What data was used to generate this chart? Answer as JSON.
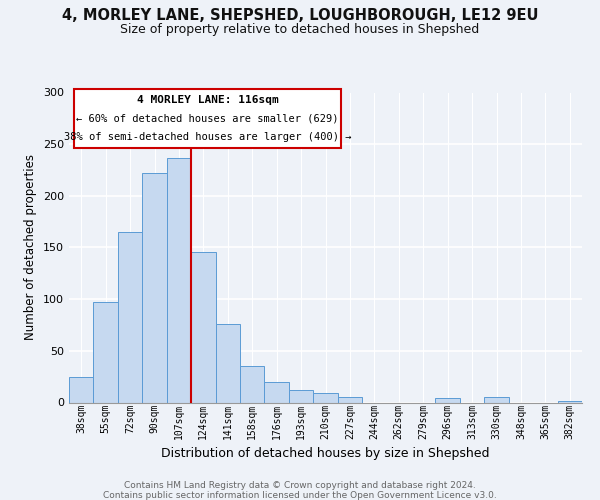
{
  "title_line1": "4, MORLEY LANE, SHEPSHED, LOUGHBOROUGH, LE12 9EU",
  "title_line2": "Size of property relative to detached houses in Shepshed",
  "xlabel": "Distribution of detached houses by size in Shepshed",
  "ylabel": "Number of detached properties",
  "bar_labels": [
    "38sqm",
    "55sqm",
    "72sqm",
    "90sqm",
    "107sqm",
    "124sqm",
    "141sqm",
    "158sqm",
    "176sqm",
    "193sqm",
    "210sqm",
    "227sqm",
    "244sqm",
    "262sqm",
    "279sqm",
    "296sqm",
    "313sqm",
    "330sqm",
    "348sqm",
    "365sqm",
    "382sqm"
  ],
  "bar_values": [
    25,
    97,
    165,
    222,
    237,
    146,
    76,
    35,
    20,
    12,
    9,
    5,
    0,
    0,
    0,
    4,
    0,
    5,
    0,
    0,
    1
  ],
  "bar_color": "#c6d9f0",
  "bar_edge_color": "#5b9bd5",
  "vline_x": 5,
  "vline_color": "#cc0000",
  "annotation_title": "4 MORLEY LANE: 116sqm",
  "annotation_line2": "← 60% of detached houses are smaller (629)",
  "annotation_line3": "38% of semi-detached houses are larger (400) →",
  "annotation_box_color": "#ffffff",
  "annotation_box_edge": "#cc0000",
  "ylim": [
    0,
    300
  ],
  "yticks": [
    0,
    50,
    100,
    150,
    200,
    250,
    300
  ],
  "footer_line1": "Contains HM Land Registry data © Crown copyright and database right 2024.",
  "footer_line2": "Contains public sector information licensed under the Open Government Licence v3.0.",
  "bg_color": "#eef2f8"
}
